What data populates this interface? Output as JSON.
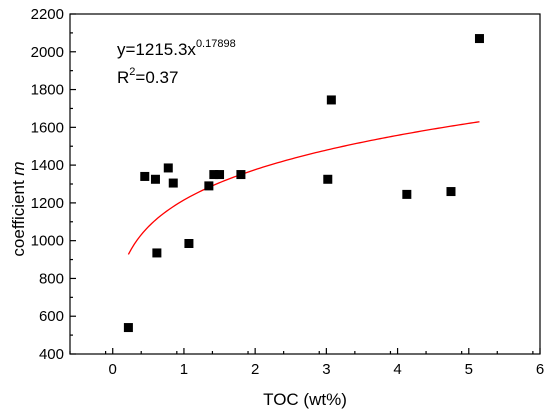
{
  "chart_data": {
    "type": "scatter",
    "xlabel": "TOC (wt%)",
    "ylabel_prefix": "coefficient ",
    "ylabel_var": "m",
    "xlim": [
      -0.6,
      6
    ],
    "ylim": [
      400,
      2200
    ],
    "xticks": [
      0,
      1,
      2,
      3,
      4,
      5,
      6
    ],
    "yticks": [
      400,
      600,
      800,
      1000,
      1200,
      1400,
      1600,
      1800,
      2000,
      2200
    ],
    "grid": false,
    "series": [
      {
        "marker": "square",
        "color": "#000000",
        "x": [
          0.22,
          0.45,
          0.6,
          0.62,
          0.78,
          0.85,
          1.07,
          1.35,
          1.42,
          1.5,
          1.8,
          3.02,
          3.07,
          4.13,
          4.75,
          5.15
        ],
        "y": [
          540,
          1340,
          1325,
          935,
          1385,
          1305,
          985,
          1290,
          1350,
          1350,
          1350,
          1325,
          1745,
          1245,
          1260,
          2070
        ]
      }
    ],
    "fit": {
      "color": "#ff0000",
      "a": 1215.3,
      "b": 0.17898,
      "x_range": [
        0.22,
        5.15
      ]
    },
    "annotation": {
      "eq_base": "y=1215.3x",
      "eq_exp": "0.17898",
      "r2_prefix": "R",
      "r2_sup": "2",
      "r2_value": "=0.37"
    }
  }
}
